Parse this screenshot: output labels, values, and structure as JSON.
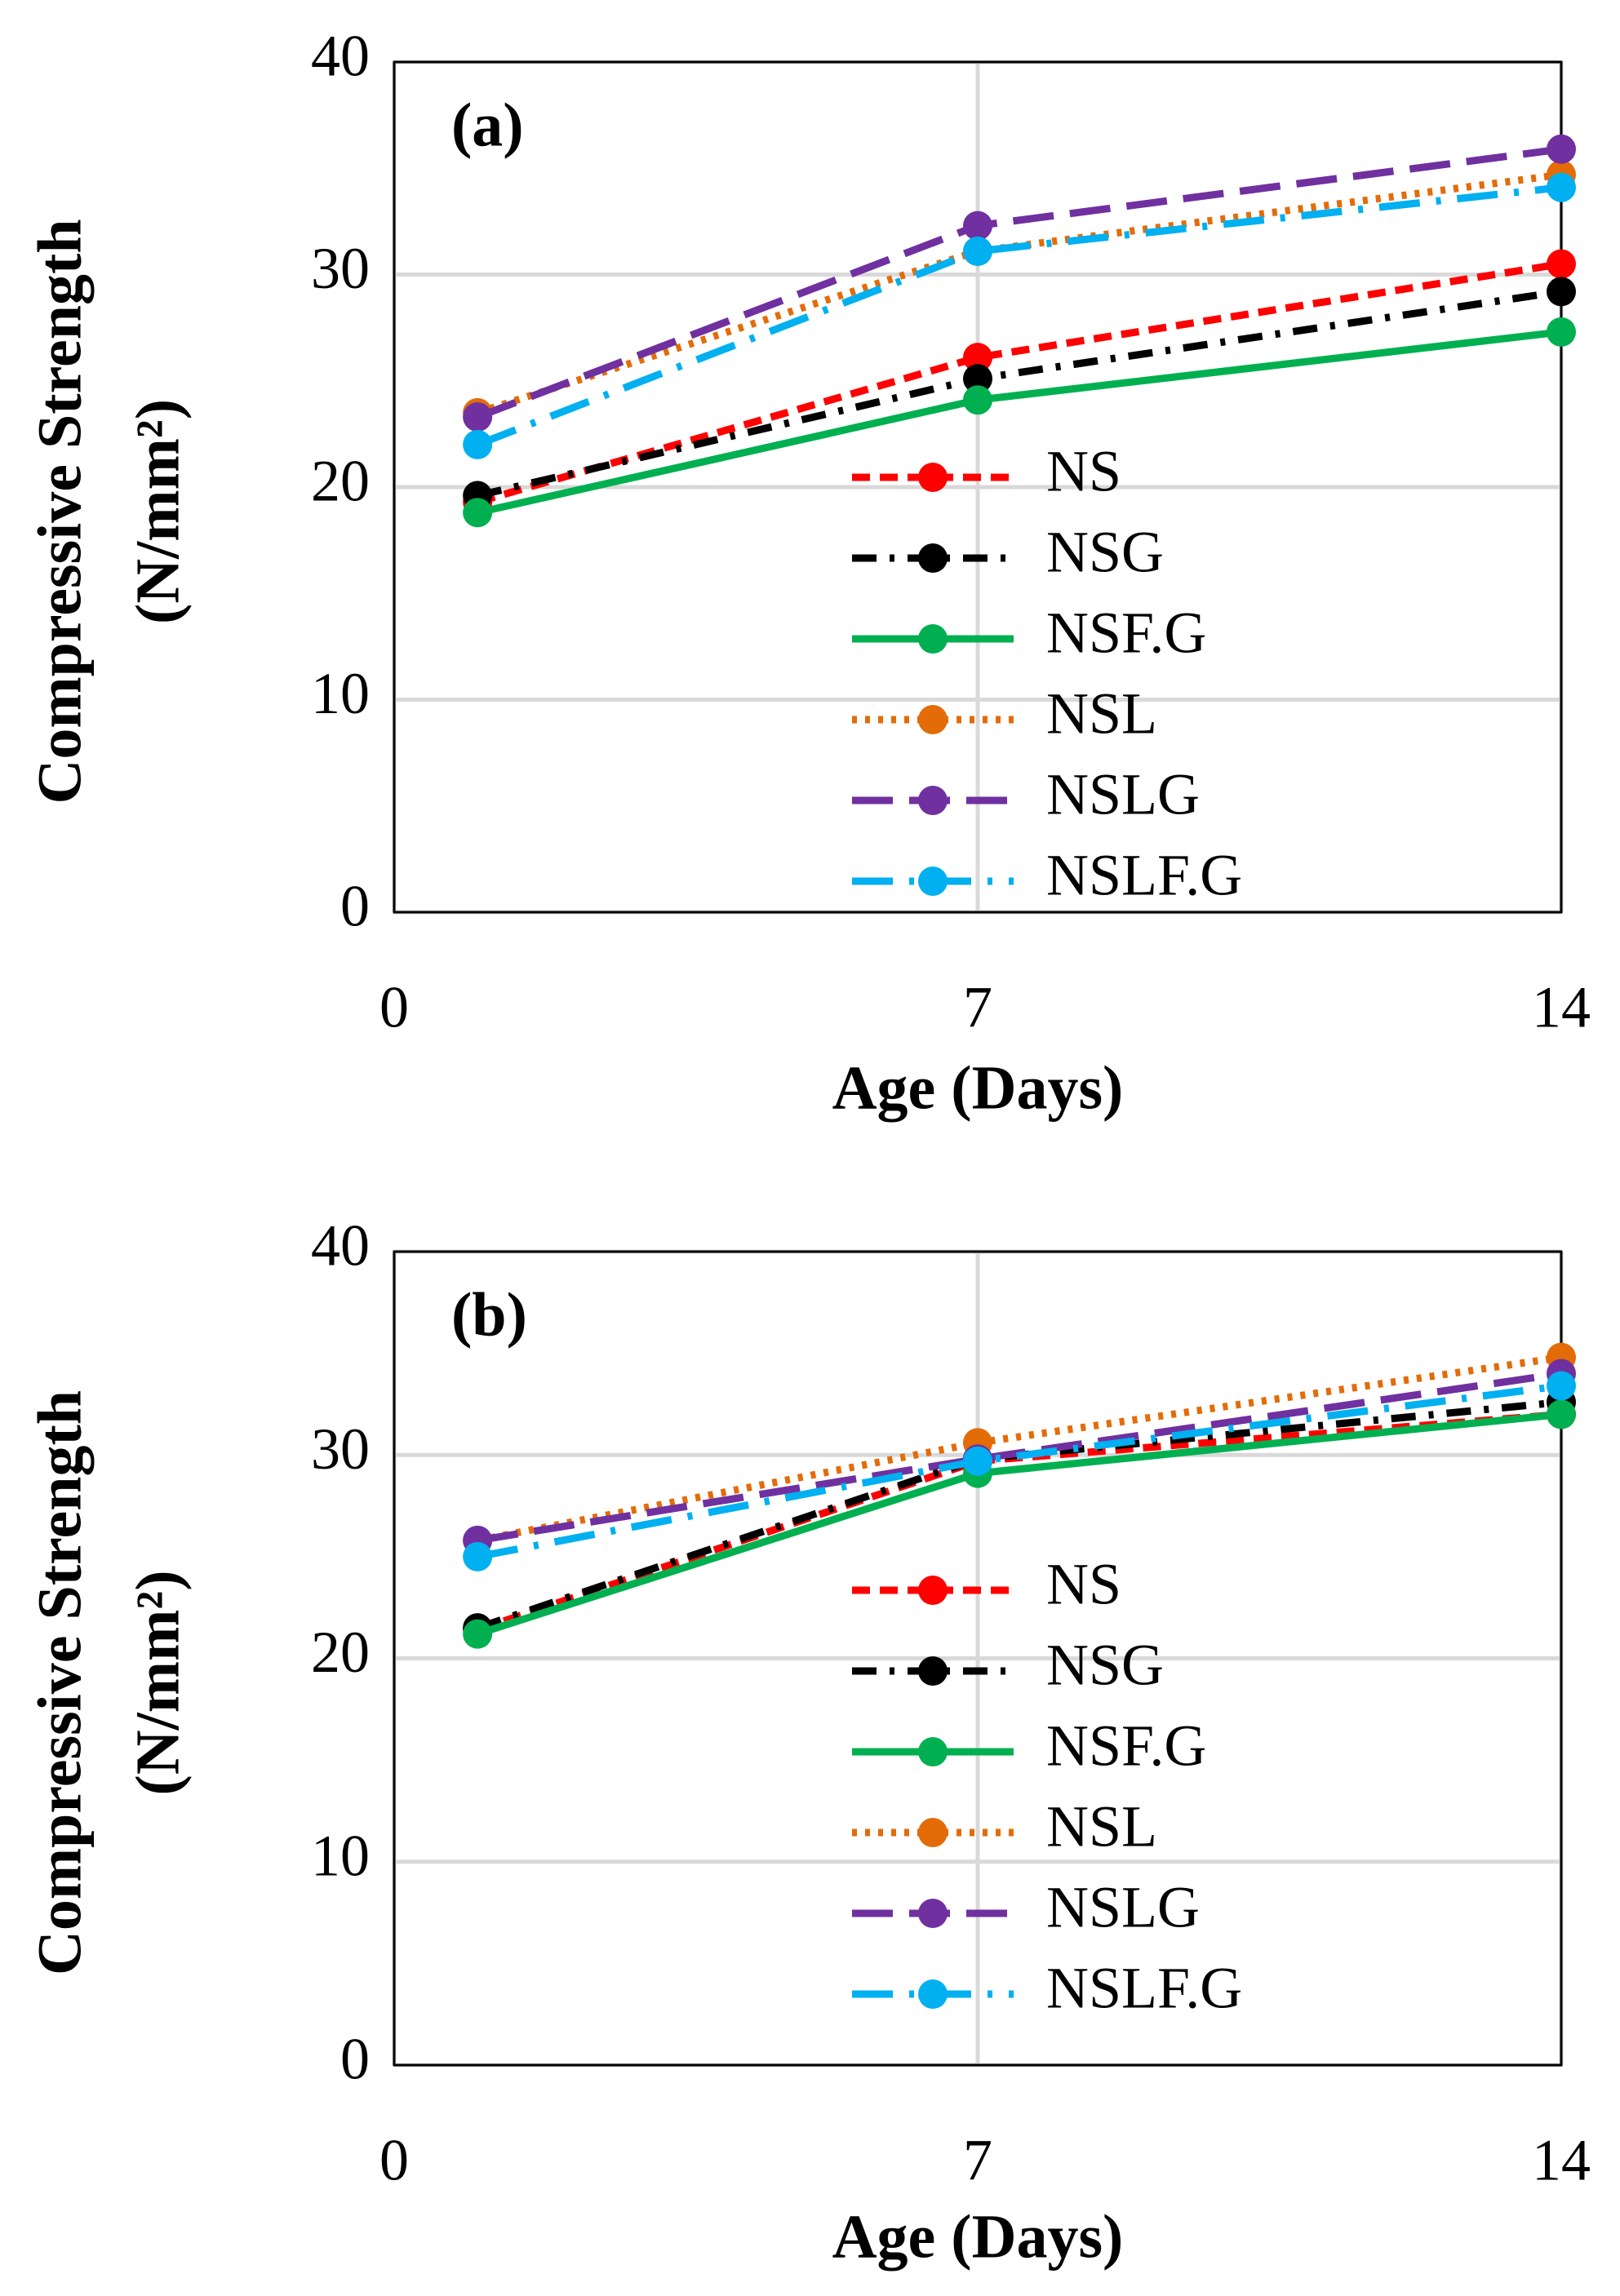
{
  "chart_data": [
    {
      "type": "line",
      "annotation": "(a)",
      "xlabel": "Age (Days)",
      "ylabel": [
        "Compressive Strength",
        "(N/mm²)"
      ],
      "x": [
        1,
        7,
        14
      ],
      "xlim": [
        0,
        14
      ],
      "xticks": [
        0,
        7,
        14
      ],
      "ylim": [
        0,
        40
      ],
      "yticks": [
        0,
        10,
        20,
        30,
        40
      ],
      "grid": true,
      "series": [
        {
          "name": "NS",
          "color": "#ff0000",
          "dash": "dash",
          "values": [
            19.3,
            26.1,
            30.5
          ]
        },
        {
          "name": "NSG",
          "color": "#000000",
          "dash": "dashdot",
          "values": [
            19.6,
            25.1,
            29.2
          ]
        },
        {
          "name": "NSF.G",
          "color": "#00b050",
          "dash": "solid",
          "values": [
            18.8,
            24.1,
            27.3
          ]
        },
        {
          "name": "NSL",
          "color": "#e36c09",
          "dash": "dot",
          "values": [
            23.5,
            31.1,
            34.7
          ]
        },
        {
          "name": "NSLG",
          "color": "#7030a0",
          "dash": "longdash",
          "values": [
            23.3,
            32.3,
            35.9
          ]
        },
        {
          "name": "NSLF.G",
          "color": "#00b0f0",
          "dash": "longdashdot",
          "values": [
            22.0,
            31.1,
            34.1
          ]
        }
      ]
    },
    {
      "type": "line",
      "annotation": "(b)",
      "xlabel": "Age (Days)",
      "ylabel": [
        "Compressive Strength",
        "(N/mm²)"
      ],
      "x": [
        1,
        7,
        14
      ],
      "xlim": [
        0,
        14
      ],
      "xticks": [
        0,
        7,
        14
      ],
      "ylim": [
        0,
        40
      ],
      "yticks": [
        0,
        10,
        20,
        30,
        40
      ],
      "grid": true,
      "series": [
        {
          "name": "NS",
          "color": "#ff0000",
          "dash": "dash",
          "values": [
            21.4,
            29.7,
            32.0
          ]
        },
        {
          "name": "NSG",
          "color": "#000000",
          "dash": "dashdot",
          "values": [
            21.5,
            29.8,
            32.6
          ]
        },
        {
          "name": "NSF.G",
          "color": "#00b050",
          "dash": "solid",
          "values": [
            21.2,
            29.1,
            32.0
          ]
        },
        {
          "name": "NSL",
          "color": "#e36c09",
          "dash": "dot",
          "values": [
            25.8,
            30.6,
            34.8
          ]
        },
        {
          "name": "NSLG",
          "color": "#7030a0",
          "dash": "longdash",
          "values": [
            25.8,
            29.8,
            34.0
          ]
        },
        {
          "name": "NSLF.G",
          "color": "#00b0f0",
          "dash": "longdashdot",
          "values": [
            25.0,
            29.7,
            33.4
          ]
        }
      ]
    }
  ]
}
